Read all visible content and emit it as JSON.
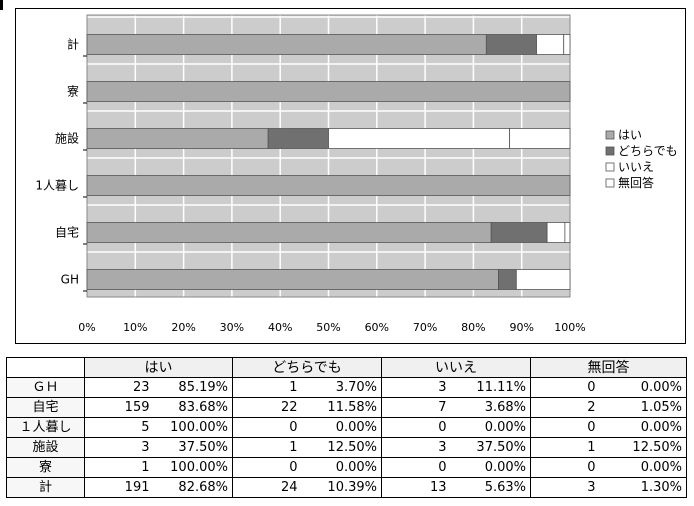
{
  "chart_data": {
    "type": "bar",
    "orientation": "horizontal",
    "stacked": "percent",
    "categories": [
      "計",
      "寮",
      "施設",
      "1人暮し",
      "自宅",
      "GH"
    ],
    "series": [
      {
        "name": "はい",
        "color": "#aaaaaa",
        "values": [
          82.68,
          100.0,
          37.5,
          100.0,
          83.68,
          85.19
        ]
      },
      {
        "name": "どちらでも",
        "color": "#707070",
        "values": [
          10.39,
          0.0,
          12.5,
          0.0,
          11.58,
          3.7
        ]
      },
      {
        "name": "いいえ",
        "color": "#ffffff",
        "values": [
          5.63,
          0.0,
          37.5,
          0.0,
          3.68,
          11.11
        ]
      },
      {
        "name": "無回答",
        "color": "#ffffff",
        "values": [
          1.3,
          0.0,
          12.5,
          0.0,
          1.05,
          0.0
        ]
      }
    ],
    "xlim": [
      0,
      100
    ],
    "xticks": [
      "0%",
      "10%",
      "20%",
      "30%",
      "40%",
      "50%",
      "60%",
      "70%",
      "80%",
      "90%",
      "100%"
    ],
    "grid": true,
    "legend": "right"
  },
  "table": {
    "headers": [
      "はい",
      "どちらでも",
      "いいえ",
      "無回答"
    ],
    "rows": [
      {
        "label": "ＧＨ",
        "cells": [
          [
            "23",
            "85.19%"
          ],
          [
            "1",
            "3.70%"
          ],
          [
            "3",
            "11.11%"
          ],
          [
            "0",
            "0.00%"
          ]
        ]
      },
      {
        "label": "自宅",
        "cells": [
          [
            "159",
            "83.68%"
          ],
          [
            "22",
            "11.58%"
          ],
          [
            "7",
            "3.68%"
          ],
          [
            "2",
            "1.05%"
          ]
        ]
      },
      {
        "label": "１人暮し",
        "cells": [
          [
            "5",
            "100.00%"
          ],
          [
            "0",
            "0.00%"
          ],
          [
            "0",
            "0.00%"
          ],
          [
            "0",
            "0.00%"
          ]
        ]
      },
      {
        "label": "施設",
        "cells": [
          [
            "3",
            "37.50%"
          ],
          [
            "1",
            "12.50%"
          ],
          [
            "3",
            "37.50%"
          ],
          [
            "1",
            "12.50%"
          ]
        ]
      },
      {
        "label": "寮",
        "cells": [
          [
            "1",
            "100.00%"
          ],
          [
            "0",
            "0.00%"
          ],
          [
            "0",
            "0.00%"
          ],
          [
            "0",
            "0.00%"
          ]
        ]
      },
      {
        "label": "計",
        "cells": [
          [
            "191",
            "82.68%"
          ],
          [
            "24",
            "10.39%"
          ],
          [
            "13",
            "5.63%"
          ],
          [
            "3",
            "1.30%"
          ]
        ]
      }
    ]
  },
  "colors": {
    "plot_background": "#cccccc",
    "grid_line": "#ffffff",
    "bar_outline": "#555555"
  }
}
